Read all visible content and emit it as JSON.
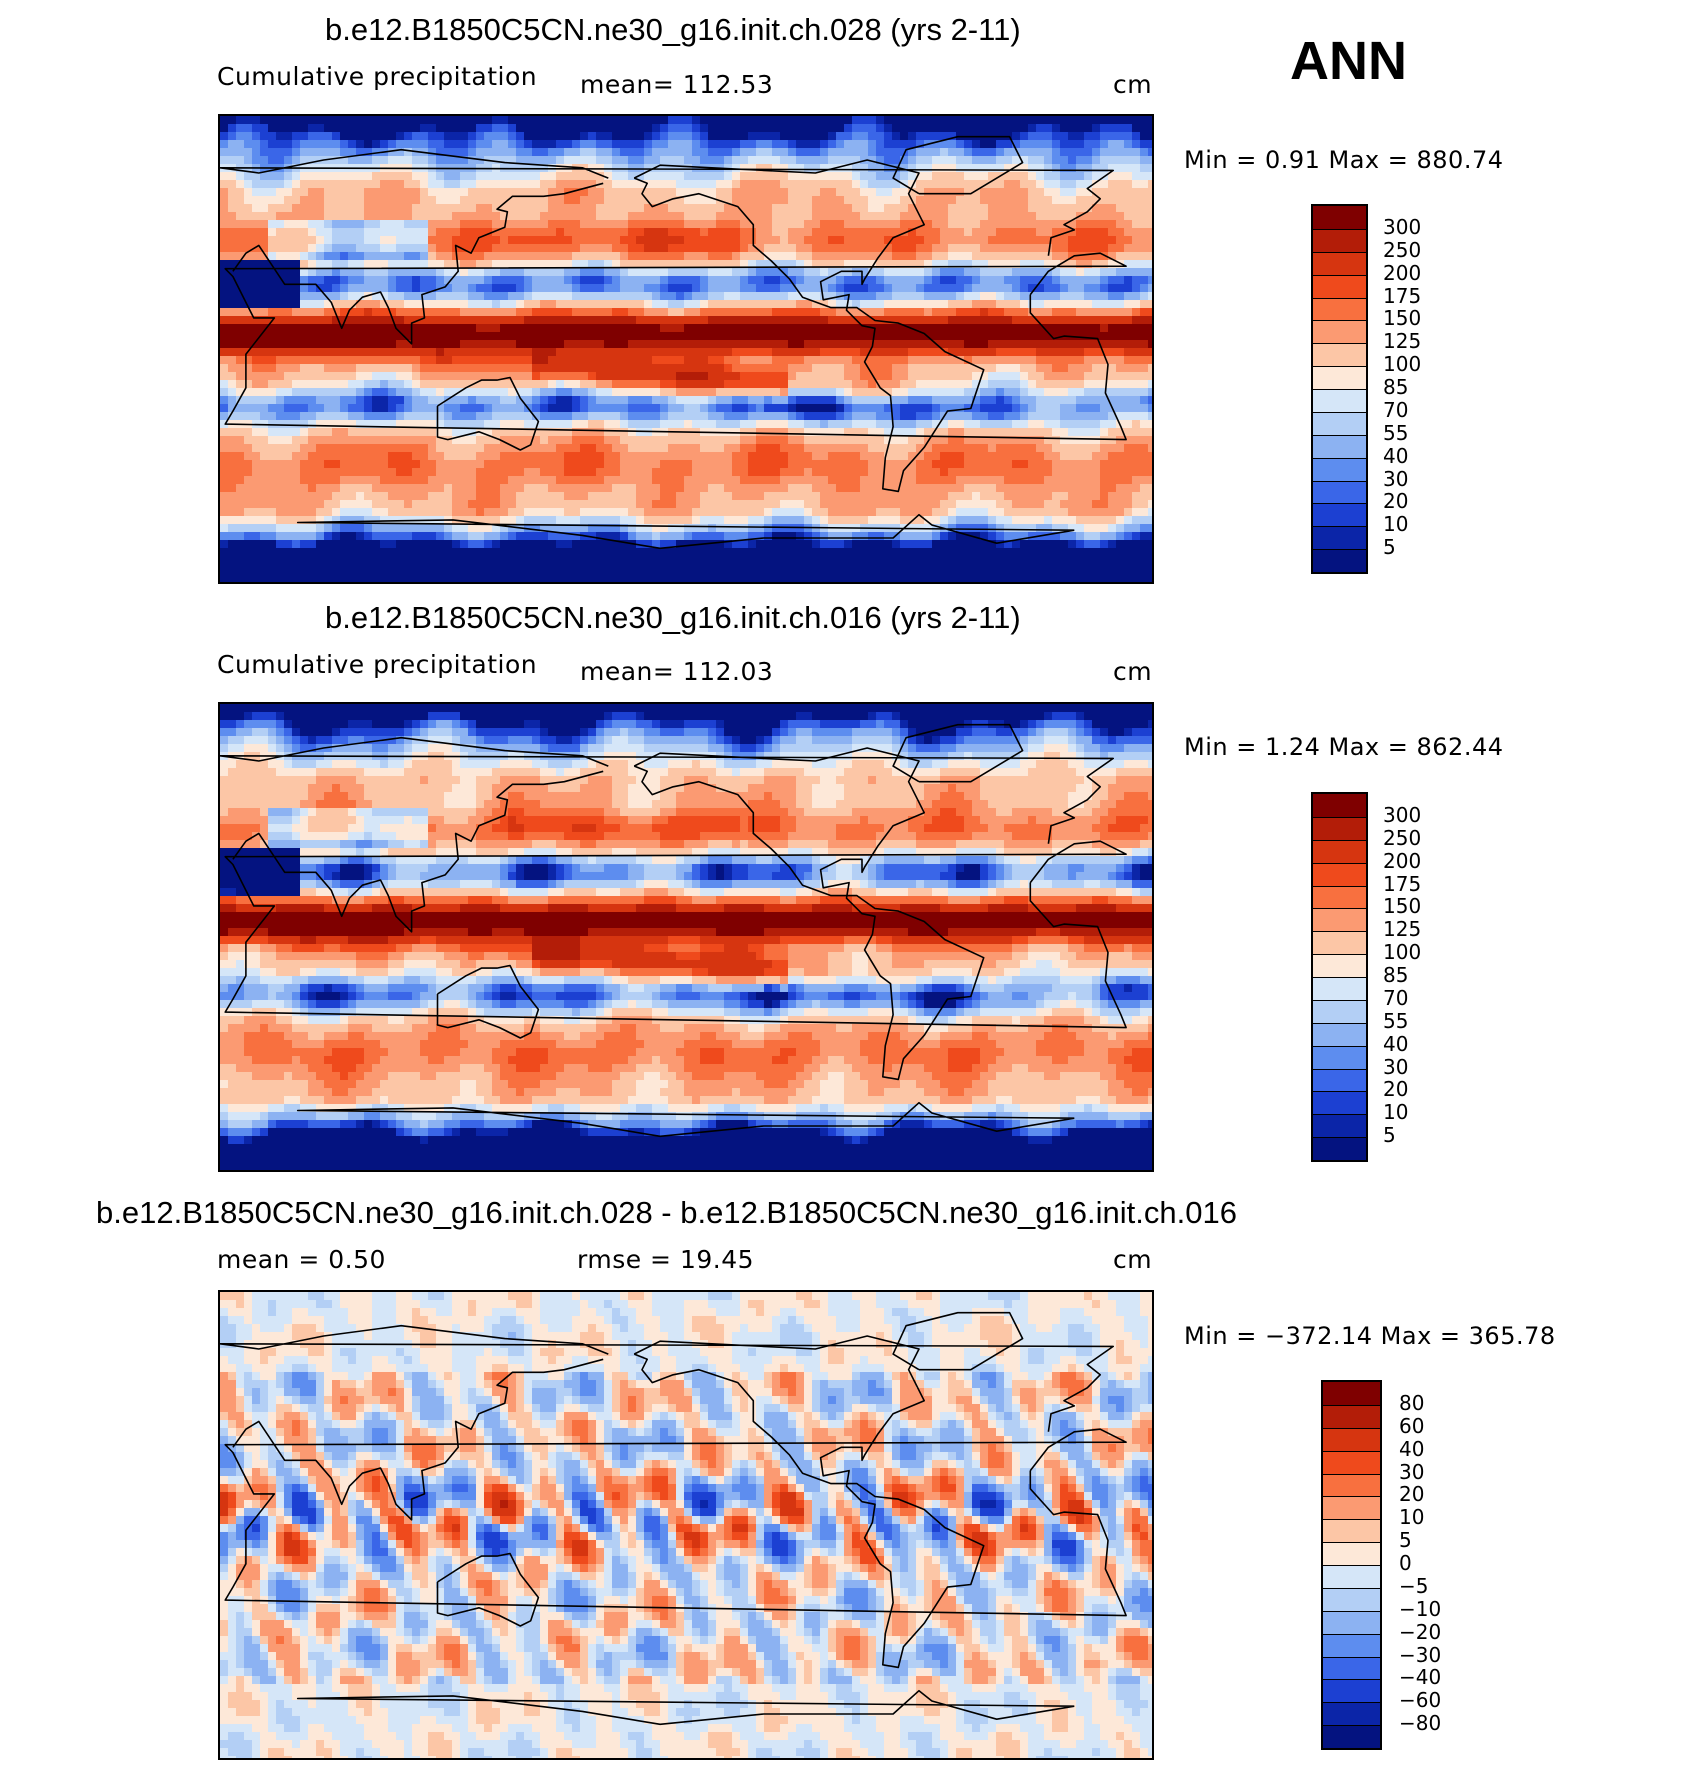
{
  "season": "ANN",
  "panels": [
    {
      "title": "b.e12.B1850C5CN.ne30_g16.init.ch.028 (yrs 2-11)",
      "left_label": "Cumulative precipitation",
      "mid_label": "mean= 112.53",
      "units": "cm",
      "minmax": "Min =    0.91  Max  =  880.74",
      "kind": "abs"
    },
    {
      "title": "b.e12.B1850C5CN.ne30_g16.init.ch.016 (yrs 2-11)",
      "left_label": "Cumulative precipitation",
      "mid_label": "mean= 112.03",
      "units": "cm",
      "minmax": "Min =    1.24  Max  =  862.44",
      "kind": "abs"
    },
    {
      "title": "b.e12.B1850C5CN.ne30_g16.init.ch.028 - b.e12.B1850C5CN.ne30_g16.init.ch.016",
      "left_label": "mean =      0.50",
      "mid_label": "rmse =     19.45",
      "units": "cm",
      "minmax": "Min = −372.14  Max  =  365.78",
      "kind": "diff"
    }
  ],
  "colorbars": {
    "abs": {
      "labels": [
        "300",
        "250",
        "200",
        "175",
        "150",
        "125",
        "100",
        "85",
        "70",
        "55",
        "40",
        "30",
        "20",
        "10",
        "5"
      ],
      "colors": [
        "#7f0000",
        "#b31d08",
        "#d63510",
        "#ef4a1c",
        "#f8703f",
        "#fb9a72",
        "#fcc6a6",
        "#fde8d8",
        "#d5e6f8",
        "#b3cff5",
        "#8cb2f2",
        "#5d8def",
        "#3a66e8",
        "#1c40d2",
        "#0b25a8",
        "#041380"
      ]
    },
    "diff": {
      "labels": [
        "80",
        "60",
        "40",
        "30",
        "20",
        "10",
        "5",
        "0",
        "−5",
        "−10",
        "−20",
        "−30",
        "−40",
        "−60",
        "−80"
      ],
      "colors": [
        "#7f0000",
        "#b31d08",
        "#d63510",
        "#ef4a1c",
        "#f8703f",
        "#fb9a72",
        "#fcc6a6",
        "#fde8d8",
        "#d5e6f8",
        "#b3cff5",
        "#8cb2f2",
        "#5d8def",
        "#3a66e8",
        "#1c40d2",
        "#0b25a8",
        "#041380"
      ]
    }
  }
}
